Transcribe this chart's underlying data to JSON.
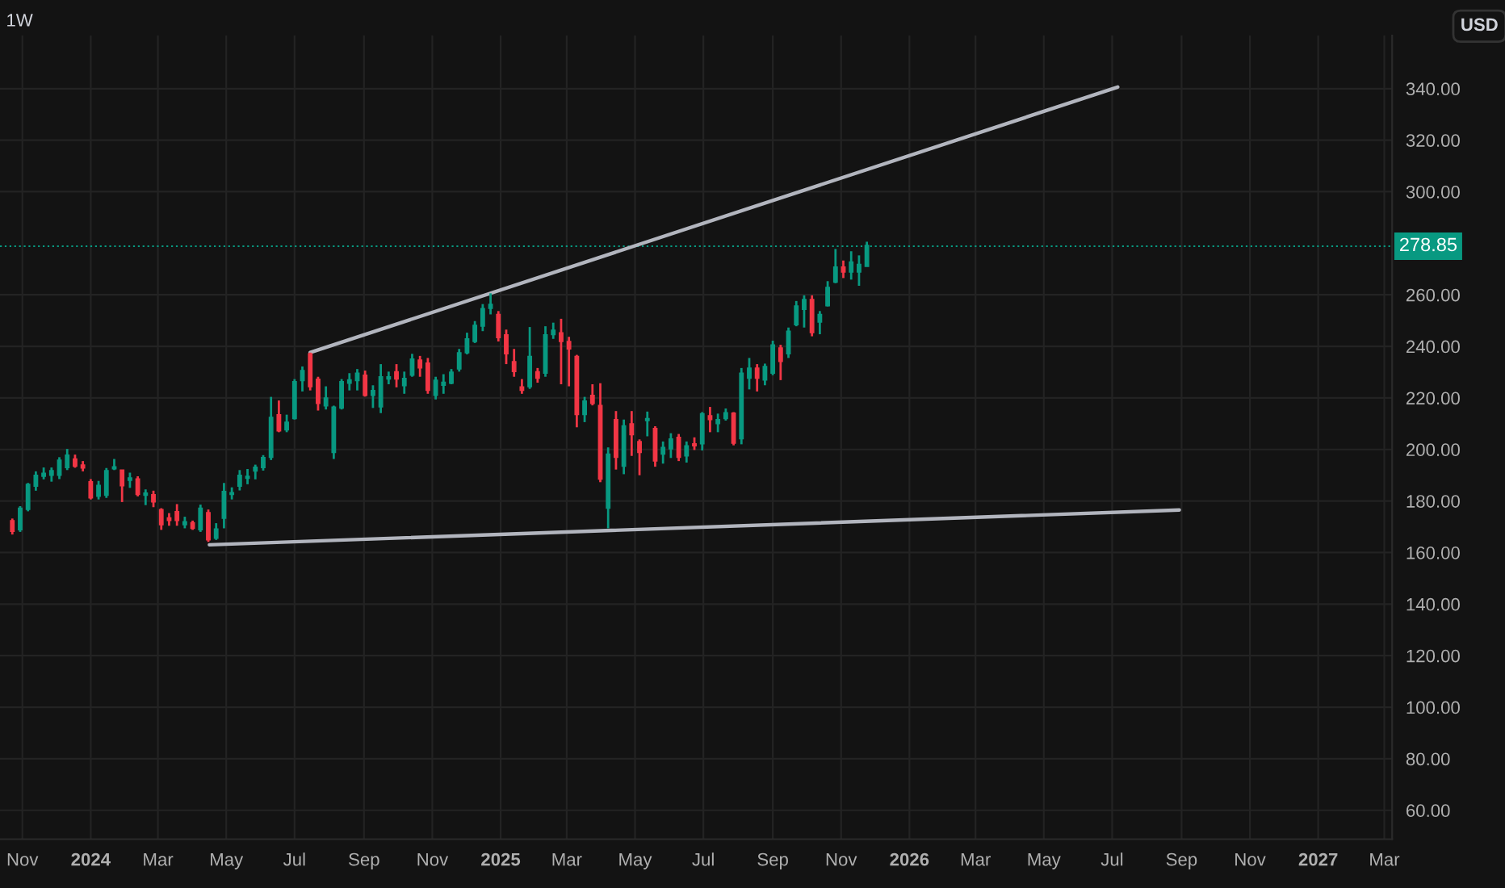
{
  "chart_data": {
    "type": "candlestick",
    "title": "1W",
    "annotations": [
      "USD"
    ],
    "x": [
      "2023-10-23",
      "2023-10-30",
      "2023-11-06",
      "2023-11-13",
      "2023-11-20",
      "2023-11-27",
      "2023-12-04",
      "2023-12-11",
      "2023-12-18",
      "2023-12-25",
      "2024-01-01",
      "2024-01-08",
      "2024-01-15",
      "2024-01-22",
      "2024-01-29",
      "2024-02-05",
      "2024-02-12",
      "2024-02-19",
      "2024-02-26",
      "2024-03-04",
      "2024-03-11",
      "2024-03-18",
      "2024-03-25",
      "2024-04-01",
      "2024-04-08",
      "2024-04-15",
      "2024-04-22",
      "2024-04-29",
      "2024-05-06",
      "2024-05-13",
      "2024-05-20",
      "2024-05-27",
      "2024-06-03",
      "2024-06-10",
      "2024-06-17",
      "2024-06-24",
      "2024-07-01",
      "2024-07-08",
      "2024-07-15",
      "2024-07-22",
      "2024-07-29",
      "2024-08-05",
      "2024-08-12",
      "2024-08-19",
      "2024-08-26",
      "2024-09-02",
      "2024-09-09",
      "2024-09-16",
      "2024-09-23",
      "2024-09-30",
      "2024-10-07",
      "2024-10-14",
      "2024-10-21",
      "2024-10-28",
      "2024-11-04",
      "2024-11-11",
      "2024-11-18",
      "2024-11-25",
      "2024-12-02",
      "2024-12-09",
      "2024-12-16",
      "2024-12-23",
      "2024-12-30",
      "2025-01-06",
      "2025-01-13",
      "2025-01-20",
      "2025-01-27",
      "2025-02-03",
      "2025-02-10",
      "2025-02-17",
      "2025-02-24",
      "2025-03-03",
      "2025-03-10",
      "2025-03-17",
      "2025-03-24",
      "2025-03-31",
      "2025-04-07",
      "2025-04-14",
      "2025-04-21",
      "2025-04-28",
      "2025-05-05",
      "2025-05-12",
      "2025-05-19",
      "2025-05-26",
      "2025-06-02",
      "2025-06-09",
      "2025-06-16",
      "2025-06-23",
      "2025-06-30",
      "2025-07-07",
      "2025-07-14",
      "2025-07-21",
      "2025-07-28",
      "2025-08-04",
      "2025-08-11",
      "2025-08-18",
      "2025-08-25",
      "2025-09-01",
      "2025-09-08",
      "2025-09-15",
      "2025-09-22",
      "2025-09-29",
      "2025-10-06",
      "2025-10-13",
      "2025-10-20",
      "2025-10-27",
      "2025-11-03",
      "2025-11-10",
      "2025-11-17",
      "2025-11-24"
    ],
    "ohlc": [
      [
        172.4,
        173.2,
        167,
        168.2
      ],
      [
        168.8,
        178,
        168,
        177.2
      ],
      [
        176.7,
        187,
        176,
        186.5
      ],
      [
        185.7,
        191.5,
        184,
        190
      ],
      [
        189.6,
        193,
        188.4,
        190.8
      ],
      [
        190,
        193,
        187.5,
        191.8
      ],
      [
        190,
        197,
        188.5,
        195.9
      ],
      [
        192.9,
        200.2,
        192,
        197.8
      ],
      [
        196.3,
        198,
        192.9,
        193.5
      ],
      [
        194,
        195.5,
        191.5,
        192.8
      ],
      [
        187.5,
        188.5,
        180.6,
        181.2
      ],
      [
        181.8,
        187.8,
        180.6,
        186.1
      ],
      [
        182.2,
        192.8,
        181.2,
        191.8
      ],
      [
        192.5,
        196.3,
        192,
        193.3
      ],
      [
        192,
        192,
        179.6,
        185.9
      ],
      [
        188,
        191,
        185.1,
        189
      ],
      [
        188.6,
        189.6,
        181.8,
        182.5
      ],
      [
        182.2,
        184.5,
        178.4,
        183.1
      ],
      [
        182.5,
        184,
        177.6,
        179.6
      ],
      [
        176.7,
        177.2,
        168.8,
        170.8
      ],
      [
        173.5,
        175.3,
        170.4,
        172.4
      ],
      [
        175.9,
        178.8,
        170.4,
        172.4
      ],
      [
        170.8,
        173.9,
        169.4,
        172
      ],
      [
        171.6,
        172.4,
        168.8,
        169.4
      ],
      [
        168.8,
        178.6,
        168,
        177.2
      ],
      [
        175.5,
        176.7,
        164.1,
        164.9
      ],
      [
        165.5,
        171.4,
        164.9,
        169.2
      ],
      [
        173.3,
        187,
        169.4,
        183.7
      ],
      [
        182.5,
        185.3,
        180.6,
        183.3
      ],
      [
        185.7,
        192,
        184.1,
        190
      ],
      [
        188.8,
        192.4,
        186.5,
        189.6
      ],
      [
        191.6,
        194.1,
        188.4,
        193.1
      ],
      [
        192.9,
        197.8,
        191.8,
        196.9
      ],
      [
        196.9,
        220.4,
        195.9,
        212.5
      ],
      [
        213.5,
        219,
        206.7,
        207.2
      ],
      [
        207.6,
        213.5,
        206.7,
        210.6
      ],
      [
        212,
        227.3,
        211.6,
        226.3
      ],
      [
        226.7,
        232.2,
        222.5,
        230.6
      ],
      [
        237.1,
        237.6,
        222.9,
        224.3
      ],
      [
        227.3,
        228.2,
        215.1,
        217.8
      ],
      [
        216.9,
        224.5,
        215.5,
        220
      ],
      [
        198.8,
        217,
        196.3,
        216.5
      ],
      [
        216,
        227.3,
        215.5,
        226.3
      ],
      [
        225.7,
        229.6,
        222.9,
        227
      ],
      [
        226.7,
        231.2,
        222.9,
        229.6
      ],
      [
        228.8,
        230.6,
        220.5,
        221
      ],
      [
        221,
        224.9,
        216.1,
        222.9
      ],
      [
        216.5,
        233.1,
        214.1,
        228.2
      ],
      [
        227.3,
        230.2,
        225.3,
        228.2
      ],
      [
        230.2,
        233.1,
        224.1,
        227.3
      ],
      [
        224.7,
        230.2,
        221.6,
        227.6
      ],
      [
        228.8,
        237.1,
        228.2,
        235.1
      ],
      [
        234.7,
        236.3,
        228.2,
        231.6
      ],
      [
        233.5,
        235.5,
        221.6,
        222.9
      ],
      [
        221,
        228.2,
        219.4,
        226.9
      ],
      [
        224.9,
        229.2,
        221.6,
        226.1
      ],
      [
        225.7,
        231.2,
        225.3,
        230
      ],
      [
        231.2,
        239,
        230.2,
        237.5
      ],
      [
        237.5,
        245.3,
        236.9,
        242.9
      ],
      [
        241.9,
        249.8,
        241.3,
        248.2
      ],
      [
        247.8,
        256.4,
        245.9,
        254.7
      ],
      [
        254.7,
        260.6,
        252.4,
        256.3
      ],
      [
        252.4,
        253.7,
        241.9,
        243.4
      ],
      [
        244.5,
        246.5,
        233.1,
        237.1
      ],
      [
        234.1,
        239,
        228.2,
        230.2
      ],
      [
        224.3,
        227.3,
        221.6,
        222.9
      ],
      [
        224.3,
        247.5,
        223.5,
        236.1
      ],
      [
        230.2,
        231.6,
        225.9,
        227.6
      ],
      [
        229.6,
        247.8,
        228.2,
        244.5
      ],
      [
        244.5,
        249.2,
        242.9,
        246.3
      ],
      [
        245.3,
        250.7,
        225.3,
        241.9
      ],
      [
        241.9,
        243.7,
        224.5,
        239
      ],
      [
        236.1,
        236.7,
        208.6,
        213.5
      ],
      [
        213.5,
        220.4,
        210.6,
        218.8
      ],
      [
        221,
        225.3,
        217.1,
        217.8
      ],
      [
        217.1,
        225.7,
        187.3,
        188.5
      ],
      [
        177.2,
        200.8,
        169.4,
        198.2
      ],
      [
        211.6,
        214.9,
        192.2,
        196.9
      ],
      [
        193.5,
        211.6,
        190.4,
        209.2
      ],
      [
        210,
        214.9,
        197.5,
        205.7
      ],
      [
        203.1,
        203.9,
        190,
        198.8
      ],
      [
        211.2,
        214.7,
        205.1,
        212
      ],
      [
        208.2,
        209,
        193.3,
        195.5
      ],
      [
        198.2,
        203.1,
        194.5,
        200.8
      ],
      [
        200.2,
        206.3,
        196.7,
        204.1
      ],
      [
        204.7,
        206,
        195.5,
        196.9
      ],
      [
        197.5,
        203.1,
        194.9,
        201.4
      ],
      [
        202.2,
        204.7,
        199.8,
        201.4
      ],
      [
        202.2,
        214.5,
        199.6,
        213.9
      ],
      [
        213.1,
        216.5,
        206.7,
        211.6
      ],
      [
        210,
        213.9,
        206.7,
        211.6
      ],
      [
        212,
        215.9,
        211.2,
        214.3
      ],
      [
        214.1,
        214.5,
        201.6,
        202.4
      ],
      [
        204.1,
        231.6,
        202,
        229.6
      ],
      [
        227.6,
        235.5,
        223.3,
        231.6
      ],
      [
        231.6,
        233.1,
        222.5,
        227.6
      ],
      [
        226.9,
        233.3,
        224.9,
        232.2
      ],
      [
        229.6,
        242.2,
        228.8,
        240.6
      ],
      [
        239.4,
        240.6,
        226.9,
        234.1
      ],
      [
        237.1,
        247.3,
        235.5,
        245.9
      ],
      [
        248.4,
        257.6,
        247.8,
        255.7
      ],
      [
        254.3,
        259.8,
        247.3,
        258.2
      ],
      [
        258.2,
        259.8,
        243.9,
        245.3
      ],
      [
        249.4,
        253.7,
        244.7,
        252.4
      ],
      [
        255.7,
        265.3,
        255.5,
        262.9
      ],
      [
        264.9,
        277.8,
        264.5,
        270.8
      ],
      [
        270.8,
        273.3,
        266.5,
        268.8
      ],
      [
        268.8,
        276.9,
        265.9,
        272.8
      ],
      [
        268.8,
        275.3,
        263.5,
        271.8
      ],
      [
        271,
        280.6,
        271,
        279.2
      ]
    ],
    "series": [
      {
        "type": "line",
        "color": "#b2b5be",
        "x": [
          "2024-07-15",
          "2026-07-06"
        ],
        "values": [
          237.6,
          340.6
        ]
      },
      {
        "type": "line",
        "color": "#b2b5be",
        "x": [
          "2024-04-16",
          "2026-08-30"
        ],
        "values": [
          163,
          176.5
        ]
      }
    ],
    "ref_lines": [
      {
        "axis": "y",
        "value": 278.85,
        "label": "278.85",
        "color": "#089981",
        "line_style": "dotted"
      }
    ],
    "xlim": [
      "2023-10-12",
      "2027-03-08"
    ],
    "xticks": [
      {
        "value": "2023-11-01",
        "label": "Nov"
      },
      {
        "value": "2024-01-01",
        "label": "2024"
      },
      {
        "value": "2024-03-01",
        "label": "Mar"
      },
      {
        "value": "2024-05-01",
        "label": "May"
      },
      {
        "value": "2024-07-01",
        "label": "Jul"
      },
      {
        "value": "2024-09-01",
        "label": "Sep"
      },
      {
        "value": "2024-11-01",
        "label": "Nov"
      },
      {
        "value": "2025-01-01",
        "label": "2025"
      },
      {
        "value": "2025-03-01",
        "label": "Mar"
      },
      {
        "value": "2025-05-01",
        "label": "May"
      },
      {
        "value": "2025-07-01",
        "label": "Jul"
      },
      {
        "value": "2025-09-01",
        "label": "Sep"
      },
      {
        "value": "2025-11-01",
        "label": "Nov"
      },
      {
        "value": "2026-01-01",
        "label": "2026"
      },
      {
        "value": "2026-03-01",
        "label": "Mar"
      },
      {
        "value": "2026-05-01",
        "label": "May"
      },
      {
        "value": "2026-07-01",
        "label": "Jul"
      },
      {
        "value": "2026-09-01",
        "label": "Sep"
      },
      {
        "value": "2026-11-01",
        "label": "Nov"
      },
      {
        "value": "2027-01-01",
        "label": "2027"
      },
      {
        "value": "2027-03-01",
        "label": "Mar"
      }
    ],
    "ylim": [
      48.8,
      360.6
    ],
    "yticks": [
      {
        "value": 60,
        "label": "60.00"
      },
      {
        "value": 80,
        "label": "80.00"
      },
      {
        "value": 100,
        "label": "100.00"
      },
      {
        "value": 120,
        "label": "120.00"
      },
      {
        "value": 140,
        "label": "140.00"
      },
      {
        "value": 160,
        "label": "160.00"
      },
      {
        "value": 180,
        "label": "180.00"
      },
      {
        "value": 200,
        "label": "200.00"
      },
      {
        "value": 220,
        "label": "220.00"
      },
      {
        "value": 240,
        "label": "240.00"
      },
      {
        "value": 260,
        "label": "260.00"
      },
      {
        "value": 300,
        "label": "300.00"
      },
      {
        "value": 320,
        "label": "320.00"
      },
      {
        "value": 340,
        "label": "340.00"
      }
    ],
    "grid": true,
    "legend": false
  }
}
